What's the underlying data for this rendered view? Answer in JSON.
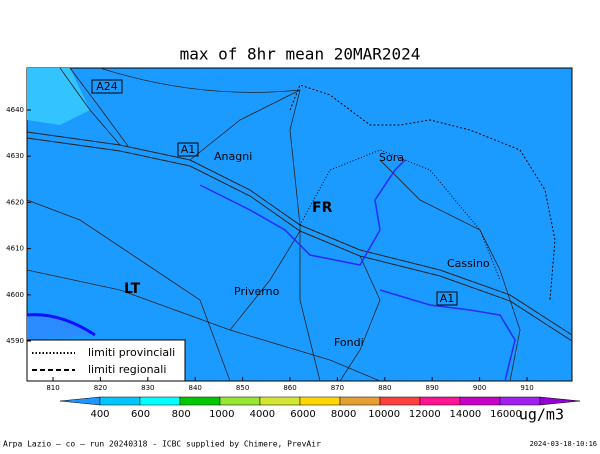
{
  "title": "max of 8hr mean 20MAR2024",
  "axes": {
    "xticks": [
      810,
      820,
      830,
      840,
      850,
      860,
      870,
      880,
      890,
      900,
      910
    ],
    "yticks": [
      4640,
      4630,
      4620,
      4610,
      4600,
      4590
    ]
  },
  "places": [
    "A24",
    "A1",
    "Anagni",
    "Sora",
    "FR",
    "Cassino",
    "LT",
    "Priverno",
    "A1",
    "Fondi"
  ],
  "legend": {
    "provincial": "limiti provinciali",
    "regional": "limiti regionali"
  },
  "colorbar": {
    "labels": [
      400,
      600,
      800,
      1000,
      4000,
      6000,
      8000,
      10000,
      12000,
      14000,
      16000
    ],
    "colors": [
      "#1e96ff",
      "#00c8ff",
      "#00ffff",
      "#00c800",
      "#96e632",
      "#d2e632",
      "#ffd700",
      "#e6a032",
      "#ff4040",
      "#ff1493",
      "#c800c8",
      "#a020f0",
      "#9400d3"
    ],
    "unit": "ug/m3"
  },
  "footer": {
    "left": "Arpa Lazio — co — run 20240318 - ICBC supplied by Chimere, PrevAir",
    "right": "2024-03-18-10:16"
  }
}
